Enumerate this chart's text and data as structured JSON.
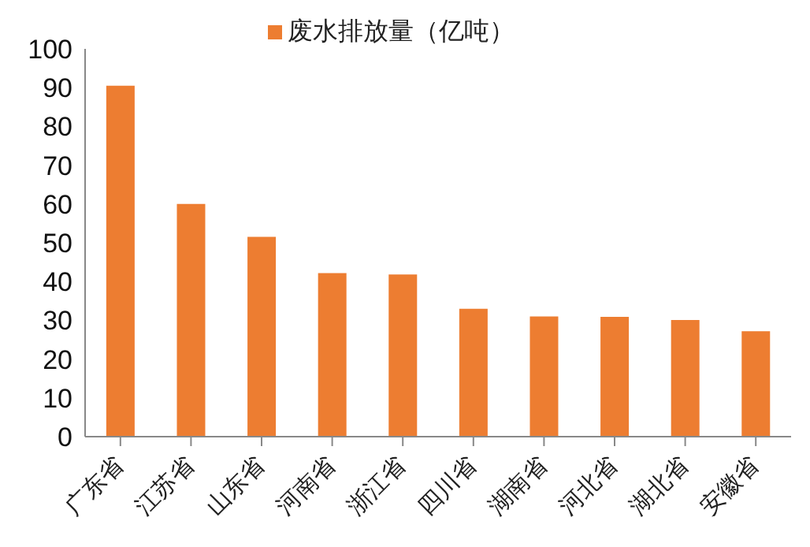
{
  "chart_data": {
    "type": "bar",
    "categories": [
      "广东省",
      "江苏省",
      "山东省",
      "河南省",
      "浙江省",
      "四川省",
      "湖南省",
      "河北省",
      "湖北省",
      "安徽省"
    ],
    "series": [
      {
        "name": "废水排放量（亿吨）",
        "color": "#ed7d31",
        "values": [
          90.5,
          60,
          51.5,
          42.2,
          41.8,
          33,
          31,
          30.9,
          30.1,
          27.2
        ]
      }
    ],
    "ylim": [
      0,
      100
    ],
    "yticks": [
      0,
      10,
      20,
      30,
      40,
      50,
      60,
      70,
      80,
      90,
      100
    ],
    "grid": false,
    "legend": "top"
  }
}
